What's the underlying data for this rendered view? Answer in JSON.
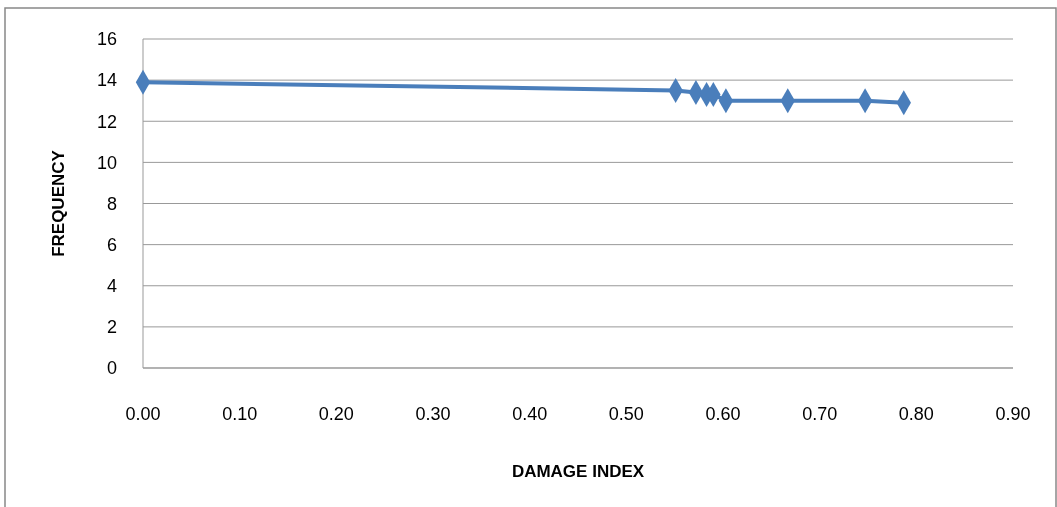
{
  "chart_data": {
    "type": "line",
    "xlabel": "DAMAGE INDEX",
    "ylabel": "FREQUENCY",
    "x": [
      0,
      0.551,
      0.572,
      0.583,
      0.59,
      0.603,
      0.667,
      0.747,
      0.787
    ],
    "series": [
      {
        "color": "#4a7ebb",
        "values": [
          13.9,
          13.5,
          13.4,
          13.3,
          13.3,
          13.0,
          13.0,
          13.0,
          12.9
        ]
      }
    ],
    "xlim": [
      0,
      0.9
    ],
    "xticks": [
      {
        "value": 0,
        "label": "0.00"
      },
      {
        "value": 0.1,
        "label": "0.10"
      },
      {
        "value": 0.2,
        "label": "0.20"
      },
      {
        "value": 0.3,
        "label": "0.30"
      },
      {
        "value": 0.4,
        "label": "0.40"
      },
      {
        "value": 0.5,
        "label": "0.50"
      },
      {
        "value": 0.6,
        "label": "0.60"
      },
      {
        "value": 0.7,
        "label": "0.70"
      },
      {
        "value": 0.8,
        "label": "0.80"
      },
      {
        "value": 0.9,
        "label": "0.90"
      }
    ],
    "ylim": [
      0,
      16
    ],
    "yticks": [
      0,
      2,
      4,
      6,
      8,
      10,
      12,
      14,
      16
    ],
    "grid": "y",
    "marker": "diamond",
    "line_style": "solid"
  }
}
